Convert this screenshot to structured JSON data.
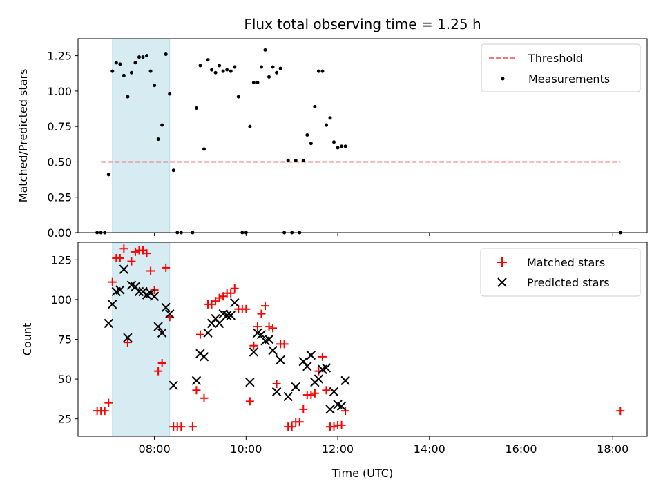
{
  "chart_data": [
    {
      "type": "scatter",
      "title": "Flux total observing time = 1.25 h",
      "xlabel": "",
      "ylabel": "Matched/Predicted stars",
      "xlim": [
        "06:20",
        "18:45"
      ],
      "ylim": [
        0,
        1.37
      ],
      "x_ticks": [
        "08:00",
        "10:00",
        "12:00",
        "14:00",
        "16:00",
        "18:00"
      ],
      "y_ticks": [
        "0.00",
        "0.25",
        "0.50",
        "0.75",
        "1.00",
        "1.25"
      ],
      "y_tick_values": [
        0,
        0.25,
        0.5,
        0.75,
        1.0,
        1.25
      ],
      "shaded_interval": [
        "07:05",
        "08:20"
      ],
      "legend": {
        "placement": "top-right",
        "entries": [
          "Threshold",
          "Measurements"
        ]
      },
      "threshold": {
        "name": "Threshold",
        "value": 0.5,
        "x_start": "06:50",
        "x_end": "18:10",
        "color": "#f07878",
        "style": "dashed"
      },
      "series": [
        {
          "name": "Measurements",
          "marker": "dot",
          "color": "#000000",
          "points": [
            [
              "06:45",
              0
            ],
            [
              "06:50",
              0
            ],
            [
              "06:55",
              0
            ],
            [
              "07:00",
              0.41
            ],
            [
              "07:05",
              1.14
            ],
            [
              "07:10",
              1.2
            ],
            [
              "07:15",
              1.19
            ],
            [
              "07:20",
              1.11
            ],
            [
              "07:25",
              0.96
            ],
            [
              "07:30",
              1.13
            ],
            [
              "07:35",
              1.2
            ],
            [
              "07:40",
              1.24
            ],
            [
              "07:45",
              1.24
            ],
            [
              "07:50",
              1.25
            ],
            [
              "07:55",
              1.14
            ],
            [
              "08:00",
              1.04
            ],
            [
              "08:05",
              0.66
            ],
            [
              "08:10",
              0.76
            ],
            [
              "08:15",
              1.26
            ],
            [
              "08:20",
              0.98
            ],
            [
              "08:25",
              0.44
            ],
            [
              "08:30",
              0
            ],
            [
              "08:35",
              0
            ],
            [
              "08:50",
              0
            ],
            [
              "08:55",
              0.88
            ],
            [
              "09:00",
              1.18
            ],
            [
              "09:05",
              0.59
            ],
            [
              "09:10",
              1.22
            ],
            [
              "09:15",
              1.15
            ],
            [
              "09:20",
              1.13
            ],
            [
              "09:25",
              1.18
            ],
            [
              "09:30",
              1.14
            ],
            [
              "09:35",
              1.15
            ],
            [
              "09:40",
              1.14
            ],
            [
              "09:45",
              1.17
            ],
            [
              "09:50",
              0.96
            ],
            [
              "09:55",
              0
            ],
            [
              "10:00",
              0
            ],
            [
              "10:05",
              0.75
            ],
            [
              "10:10",
              1.06
            ],
            [
              "10:15",
              1.06
            ],
            [
              "10:20",
              1.17
            ],
            [
              "10:25",
              1.29
            ],
            [
              "10:30",
              1.1
            ],
            [
              "10:35",
              1.17
            ],
            [
              "10:40",
              1.13
            ],
            [
              "10:45",
              1.16
            ],
            [
              "10:50",
              0
            ],
            [
              "10:55",
              0.51
            ],
            [
              "11:00",
              0
            ],
            [
              "11:05",
              0.51
            ],
            [
              "11:10",
              0
            ],
            [
              "11:15",
              0.51
            ],
            [
              "11:20",
              0.69
            ],
            [
              "11:25",
              0.63
            ],
            [
              "11:30",
              0.89
            ],
            [
              "11:35",
              1.14
            ],
            [
              "11:40",
              1.14
            ],
            [
              "11:45",
              0.76
            ],
            [
              "11:50",
              0.81
            ],
            [
              "11:55",
              0.64
            ],
            [
              "12:00",
              0.6
            ],
            [
              "12:05",
              0.61
            ],
            [
              "12:10",
              0.61
            ],
            [
              "18:10",
              0
            ]
          ]
        }
      ]
    },
    {
      "type": "scatter",
      "title": "",
      "xlabel": "Time (UTC)",
      "ylabel": "Count",
      "xlim": [
        "06:20",
        "18:45"
      ],
      "ylim": [
        14,
        136
      ],
      "x_ticks": [
        "08:00",
        "10:00",
        "12:00",
        "14:00",
        "16:00",
        "18:00"
      ],
      "y_ticks": [
        "25",
        "50",
        "75",
        "100",
        "125"
      ],
      "y_tick_values": [
        25,
        50,
        75,
        100,
        125
      ],
      "shaded_interval": [
        "07:05",
        "08:20"
      ],
      "legend": {
        "placement": "top-right",
        "entries": [
          "Matched stars",
          "Predicted stars"
        ]
      },
      "series": [
        {
          "name": "Matched stars",
          "marker": "plus",
          "color": "#ff0000",
          "points": [
            [
              "06:45",
              30
            ],
            [
              "06:50",
              30
            ],
            [
              "06:55",
              30
            ],
            [
              "07:00",
              35
            ],
            [
              "07:05",
              111
            ],
            [
              "07:10",
              126
            ],
            [
              "07:15",
              126
            ],
            [
              "07:20",
              132
            ],
            [
              "07:25",
              73
            ],
            [
              "07:30",
              124
            ],
            [
              "07:35",
              130
            ],
            [
              "07:40",
              131
            ],
            [
              "07:45",
              131
            ],
            [
              "07:50",
              129
            ],
            [
              "07:55",
              118
            ],
            [
              "08:00",
              106
            ],
            [
              "08:05",
              55
            ],
            [
              "08:10",
              60
            ],
            [
              "08:15",
              120
            ],
            [
              "08:20",
              89
            ],
            [
              "08:25",
              20
            ],
            [
              "08:30",
              20
            ],
            [
              "08:35",
              20
            ],
            [
              "08:50",
              20
            ],
            [
              "08:55",
              43
            ],
            [
              "09:00",
              78
            ],
            [
              "09:05",
              38
            ],
            [
              "09:10",
              97
            ],
            [
              "09:15",
              97
            ],
            [
              "09:20",
              99
            ],
            [
              "09:25",
              101
            ],
            [
              "09:30",
              102
            ],
            [
              "09:35",
              104
            ],
            [
              "09:40",
              104
            ],
            [
              "09:45",
              107
            ],
            [
              "09:50",
              94
            ],
            [
              "09:55",
              94
            ],
            [
              "10:00",
              94
            ],
            [
              "10:05",
              36
            ],
            [
              "10:10",
              71
            ],
            [
              "10:15",
              83
            ],
            [
              "10:20",
              91
            ],
            [
              "10:25",
              96
            ],
            [
              "10:30",
              83
            ],
            [
              "10:35",
              82
            ],
            [
              "10:40",
              47
            ],
            [
              "10:45",
              72
            ],
            [
              "10:50",
              72
            ],
            [
              "10:55",
              20
            ],
            [
              "11:00",
              20
            ],
            [
              "11:05",
              23
            ],
            [
              "11:10",
              23
            ],
            [
              "11:15",
              31
            ],
            [
              "11:20",
              40
            ],
            [
              "11:25",
              40
            ],
            [
              "11:30",
              41
            ],
            [
              "11:35",
              55
            ],
            [
              "11:40",
              64
            ],
            [
              "11:45",
              43
            ],
            [
              "11:50",
              20
            ],
            [
              "11:55",
              20
            ],
            [
              "12:00",
              21
            ],
            [
              "12:05",
              21
            ],
            [
              "12:10",
              30
            ],
            [
              "18:10",
              30
            ]
          ]
        },
        {
          "name": "Predicted stars",
          "marker": "cross",
          "color": "#000000",
          "points": [
            [
              "07:00",
              85
            ],
            [
              "07:05",
              97
            ],
            [
              "07:10",
              105
            ],
            [
              "07:15",
              106
            ],
            [
              "07:20",
              119
            ],
            [
              "07:25",
              76
            ],
            [
              "07:30",
              109
            ],
            [
              "07:35",
              108
            ],
            [
              "07:40",
              105
            ],
            [
              "07:45",
              105
            ],
            [
              "07:50",
              103
            ],
            [
              "07:55",
              104
            ],
            [
              "08:00",
              102
            ],
            [
              "08:05",
              83
            ],
            [
              "08:10",
              79
            ],
            [
              "08:15",
              95
            ],
            [
              "08:20",
              91
            ],
            [
              "08:25",
              46
            ],
            [
              "08:55",
              49
            ],
            [
              "09:00",
              66
            ],
            [
              "09:05",
              64
            ],
            [
              "09:10",
              79
            ],
            [
              "09:15",
              85
            ],
            [
              "09:20",
              88
            ],
            [
              "09:25",
              85
            ],
            [
              "09:30",
              91
            ],
            [
              "09:35",
              90
            ],
            [
              "09:40",
              90
            ],
            [
              "09:45",
              98
            ],
            [
              "10:05",
              48
            ],
            [
              "10:10",
              67
            ],
            [
              "10:15",
              79
            ],
            [
              "10:20",
              78
            ],
            [
              "10:25",
              74
            ],
            [
              "10:30",
              75
            ],
            [
              "10:35",
              68
            ],
            [
              "10:40",
              42
            ],
            [
              "10:45",
              62
            ],
            [
              "10:55",
              39
            ],
            [
              "11:05",
              45
            ],
            [
              "11:15",
              61
            ],
            [
              "11:20",
              58
            ],
            [
              "11:25",
              65
            ],
            [
              "11:30",
              48
            ],
            [
              "11:35",
              50
            ],
            [
              "11:40",
              56
            ],
            [
              "11:45",
              57
            ],
            [
              "11:50",
              31
            ],
            [
              "11:55",
              42
            ],
            [
              "12:00",
              34
            ],
            [
              "12:05",
              33
            ],
            [
              "12:10",
              49
            ]
          ]
        }
      ]
    }
  ]
}
